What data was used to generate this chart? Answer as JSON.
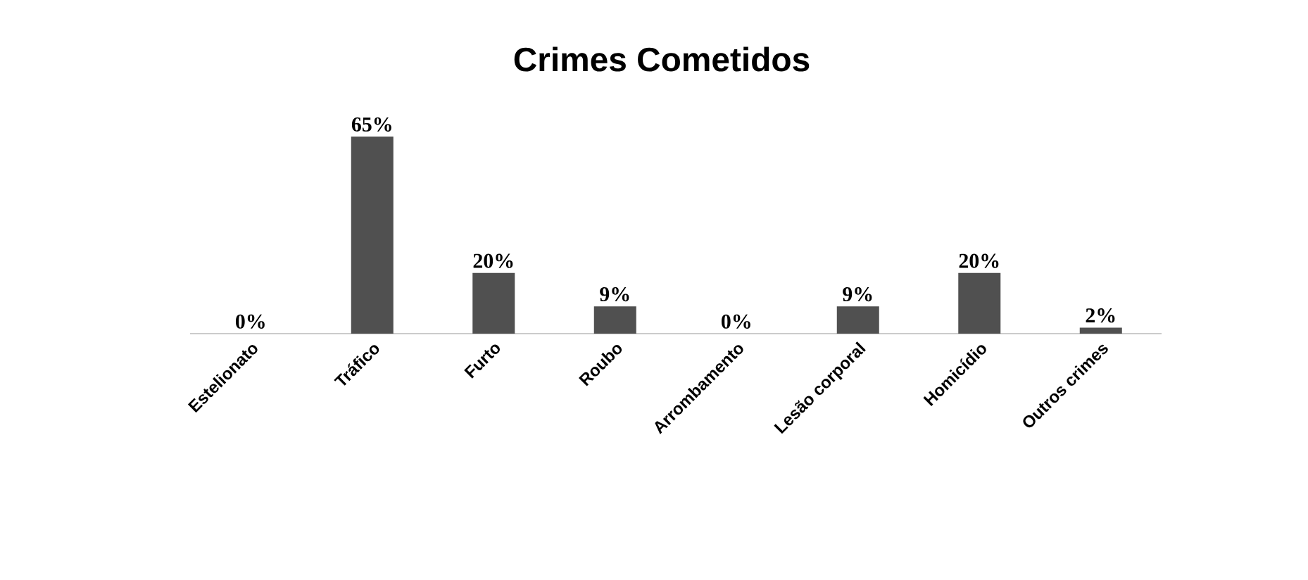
{
  "chart_data": {
    "type": "bar",
    "title": "Crimes Cometidos",
    "categories": [
      "Estelionato",
      "Tráfico",
      "Furto",
      "Roubo",
      "Arrombamento",
      "Lesão corporal",
      "Homicídio",
      "Outros crimes"
    ],
    "values": [
      0,
      65,
      20,
      9,
      0,
      9,
      20,
      2
    ],
    "value_labels": [
      "0%",
      "65%",
      "20%",
      "9%",
      "0%",
      "9%",
      "20%",
      "2%"
    ],
    "color": "#505050"
  }
}
